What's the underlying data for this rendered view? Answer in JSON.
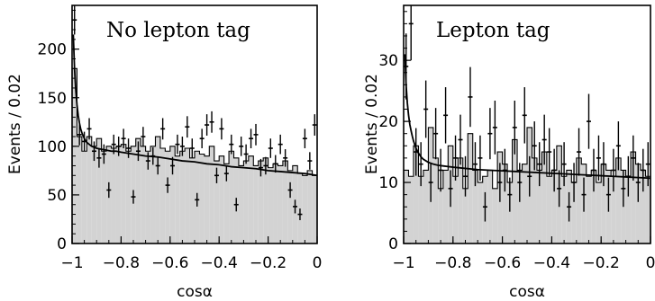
{
  "chart_data": [
    {
      "type": "bar",
      "title": "No lepton tag",
      "xlabel": "cosα",
      "ylabel": "Events / 0.02",
      "xlim": [
        -1,
        0
      ],
      "ylim": [
        0,
        245
      ],
      "xticks": [
        -1,
        -0.8,
        -0.6,
        -0.4,
        -0.2,
        0
      ],
      "xtick_labels": [
        "−1",
        "−0.8",
        "−0.6",
        "−0.4",
        "−0.2",
        "0"
      ],
      "yticks": [
        0,
        50,
        100,
        150,
        200
      ],
      "ytick_labels": [
        "0",
        "50",
        "100",
        "150",
        "200"
      ],
      "bin_width": 0.02,
      "x": [
        -0.99,
        -0.97,
        -0.95,
        -0.93,
        -0.91,
        -0.89,
        -0.87,
        -0.85,
        -0.83,
        -0.81,
        -0.79,
        -0.77,
        -0.75,
        -0.73,
        -0.71,
        -0.69,
        -0.67,
        -0.65,
        -0.63,
        -0.61,
        -0.59,
        -0.57,
        -0.55,
        -0.53,
        -0.51,
        -0.49,
        -0.47,
        -0.45,
        -0.43,
        -0.41,
        -0.39,
        -0.37,
        -0.35,
        -0.33,
        -0.31,
        -0.29,
        -0.27,
        -0.25,
        -0.23,
        -0.21,
        -0.19,
        -0.17,
        -0.15,
        -0.13,
        -0.11,
        -0.09,
        -0.07,
        -0.05,
        -0.03,
        -0.01
      ],
      "series": [
        {
          "type": "bar",
          "values": [
            180,
            110,
            95,
            110,
            100,
            108,
            95,
            100,
            98,
            100,
            102,
            95,
            100,
            108,
            100,
            95,
            100,
            110,
            98,
            95,
            100,
            90,
            95,
            98,
            88,
            95,
            92,
            90,
            100,
            85,
            90,
            82,
            95,
            88,
            80,
            85,
            90,
            80,
            85,
            88,
            78,
            82,
            80,
            85,
            75,
            80,
            72,
            70,
            75,
            70
          ]
        },
        {
          "type": "scatter",
          "values": [
            230,
            112,
            105,
            118,
            95,
            88,
            92,
            55,
            102,
            100,
            108,
            98,
            48,
            95,
            110,
            85,
            90,
            80,
            118,
            60,
            80,
            102,
            100,
            120,
            98,
            45,
            108,
            122,
            125,
            70,
            118,
            72,
            102,
            40,
            100,
            92,
            108,
            112,
            78,
            80,
            98,
            82,
            102,
            88,
            55,
            38,
            30,
            108,
            85,
            122
          ],
          "yerr": [
            15,
            11,
            10,
            11,
            10,
            10,
            10,
            8,
            10,
            10,
            10,
            10,
            7,
            10,
            10,
            9,
            9,
            9,
            11,
            8,
            9,
            10,
            10,
            11,
            10,
            7,
            10,
            11,
            11,
            8,
            11,
            8,
            10,
            7,
            10,
            10,
            10,
            11,
            9,
            9,
            10,
            9,
            10,
            9,
            8,
            7,
            6,
            10,
            9,
            11
          ]
        },
        {
          "type": "line",
          "x": [
            -0.995,
            -0.99,
            -0.985,
            -0.98,
            -0.975,
            -0.97,
            -0.965,
            -0.96,
            -0.95,
            -0.94,
            -0.93,
            -0.92,
            -0.9,
            -0.88,
            -0.86,
            -0.84,
            -0.82,
            -0.8,
            -0.75,
            -0.7,
            -0.65,
            -0.6,
            -0.55,
            -0.5,
            -0.45,
            -0.4,
            -0.35,
            -0.3,
            -0.25,
            -0.2,
            -0.15,
            -0.1,
            -0.05,
            0
          ],
          "values": [
            215,
            180,
            158,
            143,
            132,
            124,
            118,
            114,
            108,
            104,
            102,
            100,
            98,
            97,
            96,
            95,
            95,
            94,
            92,
            90,
            89,
            87,
            85,
            84,
            82,
            81,
            79,
            78,
            77,
            75,
            74,
            73,
            72,
            70
          ]
        }
      ]
    },
    {
      "type": "bar",
      "title": "Lepton tag",
      "xlabel": "cosα",
      "ylabel": "Events / 0.02",
      "xlim": [
        -1,
        0
      ],
      "ylim": [
        0,
        39
      ],
      "xticks": [
        -1,
        -0.8,
        -0.6,
        -0.4,
        -0.2,
        0
      ],
      "xtick_labels": [
        "−1",
        "−0.8",
        "−0.6",
        "−0.4",
        "−0.2",
        "0"
      ],
      "yticks": [
        0,
        10,
        20,
        30
      ],
      "ytick_labels": [
        "0",
        "10",
        "20",
        "30"
      ],
      "bin_width": 0.02,
      "x": [
        -0.99,
        -0.97,
        -0.95,
        -0.93,
        -0.91,
        -0.89,
        -0.87,
        -0.85,
        -0.83,
        -0.81,
        -0.79,
        -0.77,
        -0.75,
        -0.73,
        -0.71,
        -0.69,
        -0.67,
        -0.65,
        -0.63,
        -0.61,
        -0.59,
        -0.57,
        -0.55,
        -0.53,
        -0.51,
        -0.49,
        -0.47,
        -0.45,
        -0.43,
        -0.41,
        -0.39,
        -0.37,
        -0.35,
        -0.33,
        -0.31,
        -0.29,
        -0.27,
        -0.25,
        -0.23,
        -0.21,
        -0.19,
        -0.17,
        -0.15,
        -0.13,
        -0.11,
        -0.09,
        -0.07,
        -0.05,
        -0.03,
        -0.01
      ],
      "series": [
        {
          "type": "bar",
          "values": [
            12,
            11,
            16,
            11,
            12,
            19,
            14,
            9,
            12,
            16,
            11,
            14,
            9,
            18,
            12,
            10,
            11,
            12,
            9,
            15,
            13,
            10,
            17,
            12,
            13,
            19,
            14,
            12,
            15,
            11,
            12,
            16,
            11,
            12,
            10,
            14,
            13,
            11,
            12,
            10,
            13,
            12,
            11,
            14,
            12,
            11,
            15,
            13,
            12,
            11
          ]
        },
        {
          "type": "scatter",
          "values": [
            29,
            36,
            15,
            13,
            22,
            10,
            18,
            12,
            21,
            9,
            14,
            17,
            11,
            24,
            13,
            14,
            6,
            18,
            19,
            10,
            12,
            8,
            19,
            10,
            21,
            11,
            16,
            13,
            17,
            15,
            12,
            9,
            13,
            6,
            10,
            15,
            8,
            20,
            12,
            14,
            13,
            8,
            12,
            16,
            9,
            11,
            14,
            10,
            12,
            13
          ],
          "yerr": [
            5.4,
            6,
            3.9,
            3.6,
            4.7,
            3.2,
            4.2,
            3.5,
            4.6,
            3,
            3.7,
            4.1,
            3.3,
            4.9,
            3.6,
            3.7,
            2.4,
            4.2,
            4.4,
            3.2,
            3.5,
            2.8,
            4.4,
            3.2,
            4.6,
            3.3,
            4,
            3.6,
            4.1,
            3.9,
            3.5,
            3,
            3.6,
            2.4,
            3.2,
            3.9,
            2.8,
            4.5,
            3.5,
            3.7,
            3.6,
            2.8,
            3.5,
            4,
            3,
            3.3,
            3.7,
            3.2,
            3.5,
            3.6
          ]
        },
        {
          "type": "line",
          "x": [
            -0.995,
            -0.99,
            -0.985,
            -0.98,
            -0.975,
            -0.97,
            -0.965,
            -0.96,
            -0.95,
            -0.94,
            -0.93,
            -0.92,
            -0.9,
            -0.88,
            -0.86,
            -0.84,
            -0.82,
            -0.8,
            -0.75,
            -0.7,
            -0.65,
            -0.6,
            -0.55,
            -0.5,
            -0.45,
            -0.4,
            -0.35,
            -0.3,
            -0.25,
            -0.2,
            -0.15,
            -0.1,
            -0.05,
            0
          ],
          "values": [
            31,
            26,
            23,
            21,
            19.5,
            18.5,
            17.6,
            16.8,
            15.6,
            14.8,
            14.2,
            13.8,
            13.3,
            13,
            12.8,
            12.7,
            12.6,
            12.5,
            12.3,
            12.1,
            12,
            11.9,
            11.8,
            11.7,
            11.6,
            11.5,
            11.4,
            11.3,
            11.2,
            11.1,
            11,
            10.9,
            10.8,
            10.7
          ]
        }
      ]
    }
  ]
}
